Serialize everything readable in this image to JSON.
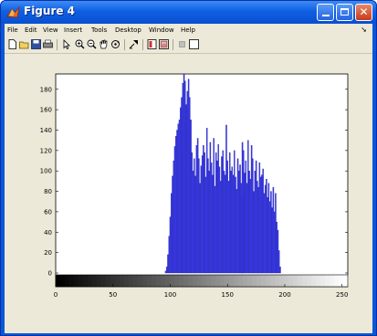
{
  "window": {
    "title": "Figure 4"
  },
  "menu": {
    "items": [
      "File",
      "Edit",
      "View",
      "Insert",
      "Tools",
      "Desktop",
      "Window",
      "Help"
    ]
  },
  "toolbar": {
    "tools": [
      "new-figure-icon",
      "open-file-icon",
      "save-icon",
      "print-icon",
      "pointer-icon",
      "zoom-in-icon",
      "zoom-out-icon",
      "pan-hand-icon",
      "rotate-3d-icon",
      "data-cursor-icon",
      "colorbar-icon",
      "legend-icon",
      "hide-plot-tools-icon",
      "show-plot-tools-icon"
    ]
  },
  "colors": {
    "bar": "#3b3bf0",
    "bar_edge": "#1a1aa0",
    "axes_bg": "#ffffff",
    "figure_bg": "#ece9d8",
    "titlebar": "#0a57d6"
  },
  "chart_data": {
    "type": "bar",
    "title": "",
    "xlabel": "",
    "ylabel": "",
    "xlim": [
      0,
      255
    ],
    "ylim": [
      0,
      195
    ],
    "xticks": [
      0,
      50,
      100,
      150,
      200,
      250
    ],
    "yticks": [
      0,
      20,
      40,
      60,
      80,
      100,
      120,
      140,
      160,
      180
    ],
    "grid": false,
    "gradient_strip": true,
    "x": [
      96,
      97,
      98,
      99,
      100,
      101,
      102,
      103,
      104,
      105,
      106,
      107,
      108,
      109,
      110,
      111,
      112,
      113,
      114,
      115,
      116,
      117,
      118,
      119,
      120,
      121,
      122,
      123,
      124,
      125,
      126,
      127,
      128,
      129,
      130,
      131,
      132,
      133,
      134,
      135,
      136,
      137,
      138,
      139,
      140,
      141,
      142,
      143,
      144,
      145,
      146,
      147,
      148,
      149,
      150,
      151,
      152,
      153,
      154,
      155,
      156,
      157,
      158,
      159,
      160,
      161,
      162,
      163,
      163,
      164,
      165,
      166,
      167,
      168,
      169,
      170,
      171,
      172,
      173,
      174,
      175,
      176,
      177,
      178,
      179,
      180,
      181,
      182,
      183,
      184,
      185,
      186,
      187,
      188,
      189,
      190,
      191,
      192,
      193,
      194,
      195,
      196
    ],
    "values": [
      2,
      6,
      18,
      36,
      55,
      78,
      95,
      110,
      124,
      134,
      140,
      146,
      150,
      162,
      172,
      186,
      195,
      188,
      165,
      178,
      190,
      172,
      150,
      118,
      100,
      112,
      95,
      125,
      132,
      112,
      88,
      105,
      115,
      125,
      118,
      94,
      142,
      112,
      100,
      128,
      108,
      96,
      132,
      85,
      118,
      110,
      126,
      104,
      90,
      114,
      120,
      100,
      96,
      145,
      110,
      90,
      118,
      100,
      104,
      96,
      120,
      94,
      82,
      112,
      100,
      106,
      88,
      74,
      128,
      120,
      98,
      110,
      88,
      130,
      100,
      92,
      125,
      112,
      80,
      100,
      110,
      90,
      84,
      108,
      94,
      96,
      102,
      78,
      86,
      92,
      74,
      88,
      70,
      80,
      64,
      84,
      60,
      78,
      50,
      42,
      22,
      6
    ]
  }
}
